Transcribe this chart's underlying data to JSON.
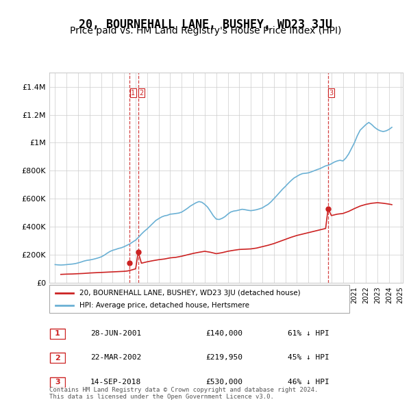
{
  "title": "20, BOURNEHALL LANE, BUSHEY, WD23 3JU",
  "subtitle": "Price paid vs. HM Land Registry's House Price Index (HPI)",
  "ylabel_ticks": [
    "£0",
    "£200K",
    "£400K",
    "£600K",
    "£800K",
    "£1M",
    "£1.2M",
    "£1.4M"
  ],
  "ylabel_values": [
    0,
    200000,
    400000,
    600000,
    800000,
    1000000,
    1200000,
    1400000
  ],
  "ylim": [
    0,
    1500000
  ],
  "xlim_years": [
    1995,
    2025
  ],
  "hpi_color": "#6ab0d4",
  "price_color": "#cc2222",
  "vline_color": "#cc2222",
  "grid_color": "#cccccc",
  "background_color": "#ffffff",
  "title_fontsize": 12,
  "subtitle_fontsize": 10,
  "transactions": [
    {
      "label": "1",
      "date": "28-JUN-2001",
      "year": 2001.49,
      "price": 140000,
      "pct": "61% ↓ HPI"
    },
    {
      "label": "2",
      "date": "22-MAR-2002",
      "year": 2002.22,
      "price": 219950,
      "pct": "45% ↓ HPI"
    },
    {
      "label": "3",
      "date": "14-SEP-2018",
      "year": 2018.71,
      "price": 530000,
      "pct": "46% ↓ HPI"
    }
  ],
  "legend_entries": [
    "20, BOURNEHALL LANE, BUSHEY, WD23 3JU (detached house)",
    "HPI: Average price, detached house, Hertsmere"
  ],
  "footnote": "Contains HM Land Registry data © Crown copyright and database right 2024.\nThis data is licensed under the Open Government Licence v3.0.",
  "hpi_data_x": [
    1995.0,
    1995.25,
    1995.5,
    1995.75,
    1996.0,
    1996.25,
    1996.5,
    1996.75,
    1997.0,
    1997.25,
    1997.5,
    1997.75,
    1998.0,
    1998.25,
    1998.5,
    1998.75,
    1999.0,
    1999.25,
    1999.5,
    1999.75,
    2000.0,
    2000.25,
    2000.5,
    2000.75,
    2001.0,
    2001.25,
    2001.5,
    2001.75,
    2002.0,
    2002.25,
    2002.5,
    2002.75,
    2003.0,
    2003.25,
    2003.5,
    2003.75,
    2004.0,
    2004.25,
    2004.5,
    2004.75,
    2005.0,
    2005.25,
    2005.5,
    2005.75,
    2006.0,
    2006.25,
    2006.5,
    2006.75,
    2007.0,
    2007.25,
    2007.5,
    2007.75,
    2008.0,
    2008.25,
    2008.5,
    2008.75,
    2009.0,
    2009.25,
    2009.5,
    2009.75,
    2010.0,
    2010.25,
    2010.5,
    2010.75,
    2011.0,
    2011.25,
    2011.5,
    2011.75,
    2012.0,
    2012.25,
    2012.5,
    2012.75,
    2013.0,
    2013.25,
    2013.5,
    2013.75,
    2014.0,
    2014.25,
    2014.5,
    2014.75,
    2015.0,
    2015.25,
    2015.5,
    2015.75,
    2016.0,
    2016.25,
    2016.5,
    2016.75,
    2017.0,
    2017.25,
    2017.5,
    2017.75,
    2018.0,
    2018.25,
    2018.5,
    2018.75,
    2019.0,
    2019.25,
    2019.5,
    2019.75,
    2020.0,
    2020.25,
    2020.5,
    2020.75,
    2021.0,
    2021.25,
    2021.5,
    2021.75,
    2022.0,
    2022.25,
    2022.5,
    2022.75,
    2023.0,
    2023.25,
    2023.5,
    2023.75,
    2024.0,
    2024.25
  ],
  "hpi_data_y": [
    130000,
    128000,
    127000,
    128000,
    130000,
    132000,
    134000,
    137000,
    142000,
    148000,
    155000,
    160000,
    163000,
    167000,
    172000,
    178000,
    185000,
    196000,
    210000,
    223000,
    232000,
    238000,
    245000,
    250000,
    258000,
    268000,
    278000,
    292000,
    305000,
    325000,
    348000,
    368000,
    385000,
    405000,
    425000,
    445000,
    458000,
    470000,
    478000,
    482000,
    490000,
    492000,
    495000,
    498000,
    505000,
    518000,
    532000,
    548000,
    560000,
    572000,
    580000,
    575000,
    560000,
    540000,
    510000,
    478000,
    455000,
    452000,
    460000,
    472000,
    490000,
    505000,
    512000,
    515000,
    520000,
    525000,
    522000,
    518000,
    515000,
    518000,
    522000,
    528000,
    535000,
    548000,
    560000,
    578000,
    600000,
    622000,
    645000,
    668000,
    688000,
    710000,
    730000,
    748000,
    760000,
    772000,
    780000,
    782000,
    785000,
    792000,
    800000,
    808000,
    815000,
    825000,
    835000,
    840000,
    850000,
    862000,
    870000,
    875000,
    870000,
    890000,
    920000,
    960000,
    1000000,
    1050000,
    1090000,
    1110000,
    1130000,
    1145000,
    1130000,
    1110000,
    1095000,
    1085000,
    1080000,
    1085000,
    1095000,
    1110000
  ],
  "price_data_x": [
    1995.5,
    1996.0,
    1996.5,
    1997.0,
    1997.5,
    1998.0,
    1998.5,
    1999.0,
    1999.5,
    2000.0,
    2000.5,
    2001.0,
    2001.25,
    2001.5,
    2001.75,
    2002.0,
    2002.22,
    2002.5,
    2003.0,
    2003.5,
    2004.0,
    2004.5,
    2005.0,
    2005.5,
    2006.0,
    2006.5,
    2007.0,
    2007.5,
    2008.0,
    2008.5,
    2009.0,
    2009.5,
    2010.0,
    2010.5,
    2011.0,
    2011.5,
    2012.0,
    2012.5,
    2013.0,
    2013.5,
    2014.0,
    2014.5,
    2015.0,
    2015.5,
    2016.0,
    2016.5,
    2017.0,
    2017.5,
    2018.0,
    2018.5,
    2018.71,
    2019.0,
    2019.5,
    2020.0,
    2020.5,
    2021.0,
    2021.5,
    2022.0,
    2022.5,
    2023.0,
    2023.5,
    2024.0,
    2024.25
  ],
  "price_data_y": [
    60000,
    62000,
    63000,
    65000,
    67000,
    70000,
    72000,
    74000,
    76000,
    78000,
    80000,
    82000,
    84000,
    88000,
    94000,
    100000,
    219950,
    140000,
    150000,
    158000,
    165000,
    170000,
    178000,
    182000,
    190000,
    200000,
    210000,
    218000,
    225000,
    218000,
    208000,
    215000,
    225000,
    232000,
    238000,
    240000,
    242000,
    248000,
    258000,
    268000,
    280000,
    295000,
    310000,
    325000,
    338000,
    348000,
    358000,
    368000,
    378000,
    388000,
    530000,
    480000,
    490000,
    495000,
    510000,
    530000,
    548000,
    560000,
    568000,
    572000,
    568000,
    562000,
    558000
  ]
}
